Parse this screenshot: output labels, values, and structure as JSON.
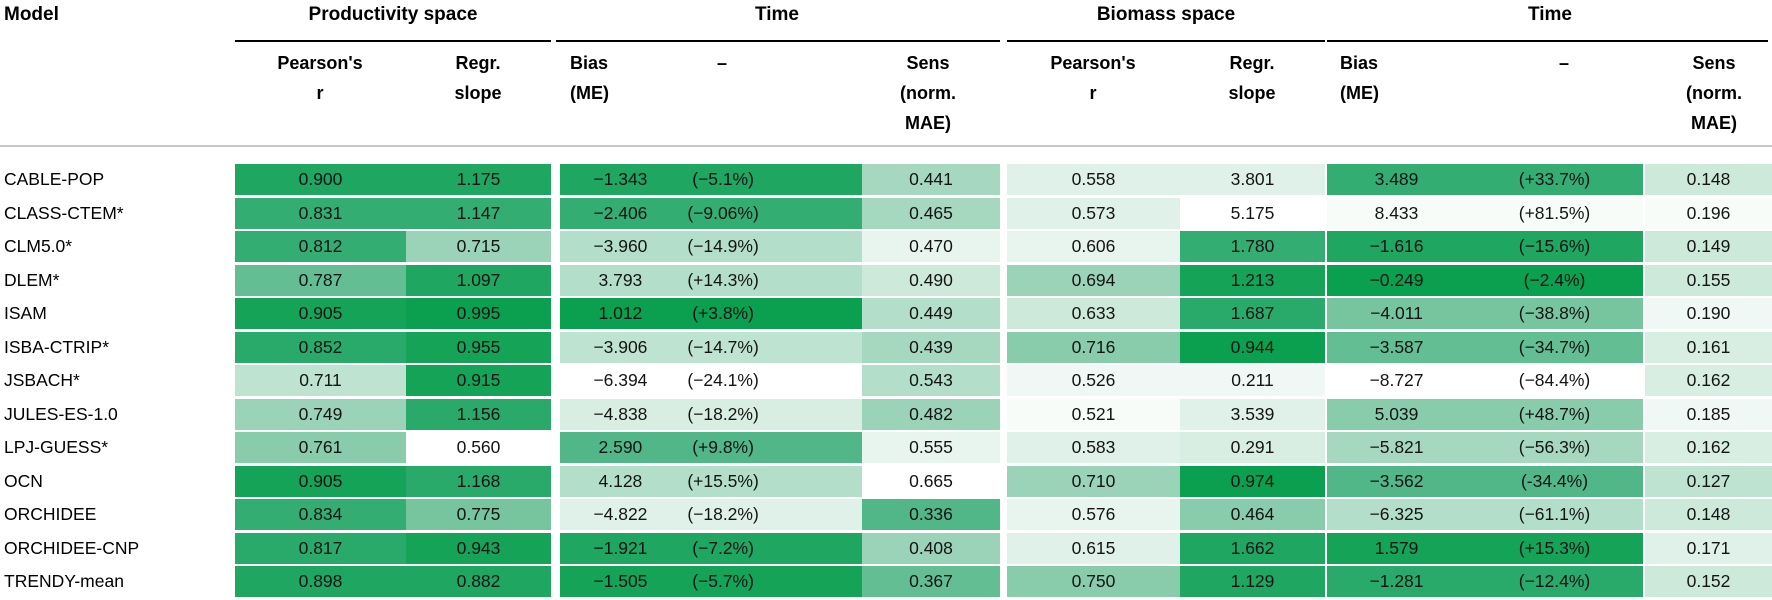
{
  "header": {
    "model_col": "Model",
    "groups": [
      {
        "label": "Productivity space"
      },
      {
        "label": "Time"
      },
      {
        "label": "Biomass space"
      },
      {
        "label": "Time"
      }
    ],
    "subheaders": [
      {
        "id": "prod-pearsons-r",
        "lines": "Pearson's\nr"
      },
      {
        "id": "prod-regr-slope",
        "lines": "Regr.\nslope"
      },
      {
        "id": "prod-bias-me",
        "lines": "Bias\n(ME)"
      },
      {
        "id": "prod-bias-pct-dash",
        "lines": "–"
      },
      {
        "id": "prod-sens-norm-mae",
        "lines": "Sens\n(norm.\nMAE)"
      },
      {
        "id": "bio-pearsons-r",
        "lines": "Pearson's\nr"
      },
      {
        "id": "bio-regr-slope",
        "lines": "Regr.\nslope"
      },
      {
        "id": "bio-bias-me",
        "lines": "Bias\n(ME)"
      },
      {
        "id": "bio-bias-pct-dash",
        "lines": "–"
      },
      {
        "id": "bio-sens-norm-mae",
        "lines": "Sens\n(norm.\nMAE)"
      }
    ]
  },
  "palette": {
    "ramp_stops": [
      "#ffffff",
      "#d8eee3",
      "#9ad3b7",
      "#3fb07c",
      "#0aa04f"
    ],
    "rule_black": "#000000",
    "rule_gray": "#c6c6c6",
    "text": "#141414"
  },
  "rows": [
    {
      "model": "CABLE-POP",
      "prod_r": "0.900",
      "prod_slope": "1.175",
      "prod_bias": "−1.343",
      "prod_pct": "(−5.1%)",
      "prod_sens": "0.441",
      "bio_r": "0.558",
      "bio_slope": "3.801",
      "bio_bias": "3.489",
      "bio_pct": "(+33.7%)",
      "bio_sens": "0.148",
      "shades": [
        9,
        9,
        9,
        4.5,
        2,
        2,
        8,
        3
      ]
    },
    {
      "model": "CLASS-CTEM*",
      "prod_r": "0.831",
      "prod_slope": "1.147",
      "prod_bias": "−2.406",
      "prod_pct": "(−9.06%)",
      "prod_sens": "0.465",
      "bio_r": "0.573",
      "bio_slope": "5.175",
      "bio_bias": "8.433",
      "bio_pct": "(+81.5%)",
      "bio_sens": "0.196",
      "shades": [
        8,
        8,
        8,
        4.5,
        2,
        0,
        0.5,
        0.5
      ]
    },
    {
      "model": "CLM5.0*",
      "prod_r": "0.812",
      "prod_slope": "0.715",
      "prod_bias": "−3.960",
      "prod_pct": "(−14.9%)",
      "prod_sens": "0.470",
      "bio_r": "0.606",
      "bio_slope": "1.780",
      "bio_bias": "−1.616",
      "bio_pct": "(−15.6%)",
      "bio_sens": "0.149",
      "shades": [
        8,
        5,
        4,
        1.5,
        1.5,
        8,
        9,
        3
      ]
    },
    {
      "model": "DLEM*",
      "prod_r": "0.787",
      "prod_slope": "1.097",
      "prod_bias": "3.793",
      "prod_pct": "(+14.3%)",
      "prod_sens": "0.490",
      "bio_r": "0.694",
      "bio_slope": "1.213",
      "bio_bias": "−0.249",
      "bio_pct": "(−2.4%)",
      "bio_sens": "0.155",
      "shades": [
        6.5,
        9,
        4,
        3,
        5,
        9.5,
        10,
        3
      ]
    },
    {
      "model": "ISAM",
      "prod_r": "0.905",
      "prod_slope": "0.995",
      "prod_bias": "1.012",
      "prod_pct": "(+3.8%)",
      "prod_sens": "0.449",
      "bio_r": "0.633",
      "bio_slope": "1.687",
      "bio_bias": "−4.011",
      "bio_pct": "(−38.8%)",
      "bio_sens": "0.190",
      "shades": [
        9.5,
        10,
        10,
        4,
        3,
        8.5,
        6,
        1
      ]
    },
    {
      "model": "ISBA-CTRIP*",
      "prod_r": "0.852",
      "prod_slope": "0.955",
      "prod_bias": "−3.906",
      "prod_pct": "(−14.7%)",
      "prod_sens": "0.439",
      "bio_r": "0.716",
      "bio_slope": "0.944",
      "bio_bias": "−3.587",
      "bio_pct": "(−34.7%)",
      "bio_sens": "0.161",
      "shades": [
        8.5,
        9.5,
        3.5,
        4.5,
        5.5,
        10,
        6.5,
        2.5
      ]
    },
    {
      "model": "JSBACH*",
      "prod_r": "0.711",
      "prod_slope": "0.915",
      "prod_bias": "−6.394",
      "prod_pct": "(−24.1%)",
      "prod_sens": "0.543",
      "bio_r": "0.526",
      "bio_slope": "0.211",
      "bio_bias": "−8.727",
      "bio_pct": "(−84.4%)",
      "bio_sens": "0.162",
      "shades": [
        3.5,
        9.5,
        0,
        4,
        1,
        1,
        0,
        2.5
      ]
    },
    {
      "model": "JULES-ES-1.0",
      "prod_r": "0.749",
      "prod_slope": "1.156",
      "prod_bias": "−4.838",
      "prod_pct": "(−18.2%)",
      "prod_sens": "0.482",
      "bio_r": "0.521",
      "bio_slope": "3.539",
      "bio_bias": "5.039",
      "bio_pct": "(+48.7%)",
      "bio_sens": "0.185",
      "shades": [
        5,
        8.5,
        2.5,
        5,
        0.5,
        2,
        5.5,
        1
      ]
    },
    {
      "model": "LPJ-GUESS*",
      "prod_r": "0.761",
      "prod_slope": "0.560",
      "prod_bias": "2.590",
      "prod_pct": "(+9.8%)",
      "prod_sens": "0.555",
      "bio_r": "0.583",
      "bio_slope": "0.291",
      "bio_bias": "−5.821",
      "bio_pct": "(−56.3%)",
      "bio_sens": "0.162",
      "shades": [
        5.5,
        0,
        7,
        1.5,
        2,
        2.5,
        4.5,
        2.5
      ]
    },
    {
      "model": "OCN",
      "prod_r": "0.905",
      "prod_slope": "1.168",
      "prod_bias": "4.128",
      "prod_pct": "(+15.5%)",
      "prod_sens": "0.665",
      "bio_r": "0.710",
      "bio_slope": "0.974",
      "bio_bias": "−3.562",
      "bio_pct": "(-34.4%)",
      "bio_sens": "0.127",
      "shades": [
        9.5,
        8.5,
        4,
        0,
        5,
        10,
        7,
        3.5
      ]
    },
    {
      "model": "ORCHIDEE",
      "prod_r": "0.834",
      "prod_slope": "0.775",
      "prod_bias": "−4.822",
      "prod_pct": "(−18.2%)",
      "prod_sens": "0.336",
      "bio_r": "0.576",
      "bio_slope": "0.464",
      "bio_bias": "−6.325",
      "bio_pct": "(−61.1%)",
      "bio_sens": "0.148",
      "shades": [
        8,
        6,
        2,
        7,
        1.5,
        5.5,
        4,
        3
      ]
    },
    {
      "model": "ORCHIDEE-CNP",
      "prod_r": "0.817",
      "prod_slope": "0.943",
      "prod_bias": "−1.921",
      "prod_pct": "(−7.2%)",
      "prod_sens": "0.408",
      "bio_r": "0.615",
      "bio_slope": "1.662",
      "bio_bias": "1.579",
      "bio_pct": "(+15.3%)",
      "bio_sens": "0.171",
      "shades": [
        8.5,
        9.5,
        9,
        5,
        2,
        9,
        9.5,
        2
      ]
    },
    {
      "model": "TRENDY-mean",
      "prod_r": "0.898",
      "prod_slope": "0.882",
      "prod_bias": "−1.505",
      "prod_pct": "(−5.7%)",
      "prod_sens": "0.367",
      "bio_r": "0.750",
      "bio_slope": "1.129",
      "bio_bias": "−1.281",
      "bio_pct": "(−12.4%)",
      "bio_sens": "0.152",
      "shades": [
        9,
        9,
        9.5,
        6.5,
        5.5,
        9,
        8.5,
        3
      ]
    }
  ],
  "chart_data": {
    "type": "table",
    "title": "Model evaluation in productivity space and biomass space",
    "column_groups": [
      "Productivity space",
      "Time",
      "Biomass space",
      "Time"
    ],
    "columns": [
      "Model",
      "Pearson's r (productivity)",
      "Regr. slope (productivity)",
      "Bias ME (productivity, time)",
      "Bias % (productivity, time)",
      "Sens norm. MAE (productivity, time)",
      "Pearson's r (biomass)",
      "Regr. slope (biomass)",
      "Bias ME (biomass, time)",
      "Bias % (biomass, time)",
      "Sens norm. MAE (biomass, time)"
    ],
    "rows": [
      [
        "CABLE-POP",
        0.9,
        1.175,
        -1.343,
        -5.1,
        0.441,
        0.558,
        3.801,
        3.489,
        33.7,
        0.148
      ],
      [
        "CLASS-CTEM*",
        0.831,
        1.147,
        -2.406,
        -9.06,
        0.465,
        0.573,
        5.175,
        8.433,
        81.5,
        0.196
      ],
      [
        "CLM5.0*",
        0.812,
        0.715,
        -3.96,
        -14.9,
        0.47,
        0.606,
        1.78,
        -1.616,
        -15.6,
        0.149
      ],
      [
        "DLEM*",
        0.787,
        1.097,
        3.793,
        14.3,
        0.49,
        0.694,
        1.213,
        -0.249,
        -2.4,
        0.155
      ],
      [
        "ISAM",
        0.905,
        0.995,
        1.012,
        3.8,
        0.449,
        0.633,
        1.687,
        -4.011,
        -38.8,
        0.19
      ],
      [
        "ISBA-CTRIP*",
        0.852,
        0.955,
        -3.906,
        -14.7,
        0.439,
        0.716,
        0.944,
        -3.587,
        -34.7,
        0.161
      ],
      [
        "JSBACH*",
        0.711,
        0.915,
        -6.394,
        -24.1,
        0.543,
        0.526,
        0.211,
        -8.727,
        -84.4,
        0.162
      ],
      [
        "JULES-ES-1.0",
        0.749,
        1.156,
        -4.838,
        -18.2,
        0.482,
        0.521,
        3.539,
        5.039,
        48.7,
        0.185
      ],
      [
        "LPJ-GUESS*",
        0.761,
        0.56,
        2.59,
        9.8,
        0.555,
        0.583,
        0.291,
        -5.821,
        -56.3,
        0.162
      ],
      [
        "OCN",
        0.905,
        1.168,
        4.128,
        15.5,
        0.665,
        0.71,
        0.974,
        -3.562,
        -34.4,
        0.127
      ],
      [
        "ORCHIDEE",
        0.834,
        0.775,
        -4.822,
        -18.2,
        0.336,
        0.576,
        0.464,
        -6.325,
        -61.1,
        0.148
      ],
      [
        "ORCHIDEE-CNP",
        0.817,
        0.943,
        -1.921,
        -7.2,
        0.408,
        0.615,
        1.662,
        1.579,
        15.3,
        0.171
      ],
      [
        "TRENDY-mean",
        0.898,
        0.882,
        -1.505,
        -5.7,
        0.367,
        0.75,
        1.129,
        -1.281,
        -12.4,
        0.152
      ]
    ],
    "color_encoding": "per-cell green shading, darker green = better skill, white = worst",
    "legend_position": "none",
    "grid": false
  }
}
